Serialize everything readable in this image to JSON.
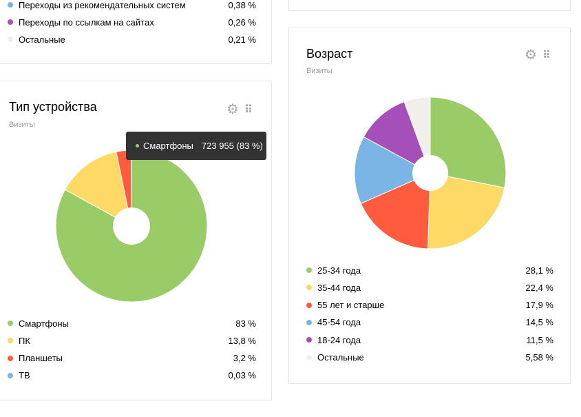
{
  "traffic_partial": {
    "rows": [
      {
        "label": "Переходы из рекомендательных систем",
        "value": "0,38 %",
        "color": "#7ab5e6"
      },
      {
        "label": "Переходы по ссылкам на сайтах",
        "value": "0,26 %",
        "color": "#a550b8"
      },
      {
        "label": "Остальные",
        "value": "0,21 %",
        "color": "#f0efeb"
      }
    ]
  },
  "tooltip": {
    "label": "Смартфоны",
    "value": "723 955 (83 %)",
    "color": "#99cc66"
  },
  "chart_data": [
    {
      "type": "pie",
      "title": "Тип устройства",
      "subtitle": "Визиты",
      "categories": [
        "Смартфоны",
        "ПК",
        "Планшеты",
        "ТВ"
      ],
      "values": [
        83,
        13.8,
        3.2,
        0.03
      ],
      "labels": [
        "83 %",
        "13,8 %",
        "3,2 %",
        "0,03 %"
      ],
      "colors": [
        "#99cc66",
        "#ffd966",
        "#ff5c3f",
        "#7ab5e6"
      ]
    },
    {
      "type": "pie",
      "title": "Возраст",
      "subtitle": "Визиты",
      "categories": [
        "25-34 года",
        "35-44 года",
        "55 лет и старше",
        "45-54 года",
        "18-24 года",
        "Остальные"
      ],
      "values": [
        28.1,
        22.4,
        17.9,
        14.5,
        11.5,
        5.58
      ],
      "labels": [
        "28,1 %",
        "22,4 %",
        "17,9 %",
        "14,5 %",
        "11,5 %",
        "5,58 %"
      ],
      "colors": [
        "#99cc66",
        "#ffd966",
        "#ff5c3f",
        "#7ab5e6",
        "#a550b8",
        "#f0efeb"
      ]
    }
  ]
}
